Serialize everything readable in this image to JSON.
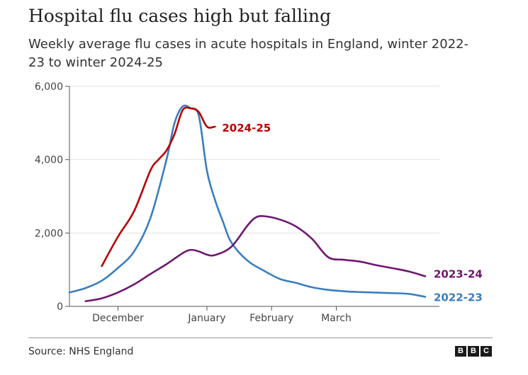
{
  "title": "Hospital flu cases high but falling",
  "subtitle": "Weekly average flu cases in acute hospitals in England, winter 2022-23 to winter 2024-25",
  "source": "Source: NHS England",
  "logo": [
    "B",
    "B",
    "C"
  ],
  "chart_data": {
    "type": "line",
    "xlabel": "",
    "ylabel": "",
    "x_ticks": [
      "December",
      "January",
      "February",
      "March"
    ],
    "y_ticks": [
      "0",
      "2,000",
      "4,000",
      "6,000"
    ],
    "ylim": [
      0,
      6000
    ],
    "x_unit": "week",
    "xlim": [
      0,
      22
    ],
    "x_tick_positions": [
      3,
      8.5,
      12.5,
      16.5
    ],
    "grid": true,
    "series": [
      {
        "name": "2022-23",
        "color": "#3a7ebf",
        "x": [
          0,
          1,
          2,
          3,
          4,
          5,
          6,
          6.5,
          7,
          7.5,
          8,
          8.5,
          9,
          9.5,
          10,
          11,
          12,
          13,
          14,
          15,
          16,
          17,
          18,
          19,
          20,
          21,
          22
        ],
        "y": [
          380,
          500,
          700,
          1050,
          1500,
          2400,
          4000,
          5000,
          5450,
          5400,
          5200,
          3700,
          2900,
          2300,
          1750,
          1250,
          980,
          750,
          640,
          520,
          450,
          410,
          390,
          375,
          360,
          340,
          260
        ]
      },
      {
        "name": "2023-24",
        "color": "#6e1770",
        "x": [
          1,
          2,
          3,
          4,
          5,
          6,
          7,
          7.5,
          8,
          8.5,
          9,
          10,
          11,
          11.5,
          12,
          13,
          14,
          15,
          16,
          17,
          18,
          19,
          20,
          21,
          22
        ],
        "y": [
          140,
          220,
          380,
          600,
          880,
          1150,
          1450,
          1540,
          1500,
          1410,
          1400,
          1620,
          2200,
          2420,
          2460,
          2370,
          2180,
          1840,
          1340,
          1270,
          1220,
          1120,
          1040,
          950,
          820
        ]
      },
      {
        "name": "2024-25",
        "color": "#b80000",
        "x": [
          2,
          3,
          4,
          5,
          5.5,
          6,
          6.5,
          7,
          7.5,
          8,
          8.5,
          9
        ],
        "y": [
          1100,
          1900,
          2600,
          3700,
          4000,
          4250,
          4700,
          5350,
          5400,
          5300,
          4900,
          4900
        ]
      }
    ]
  }
}
